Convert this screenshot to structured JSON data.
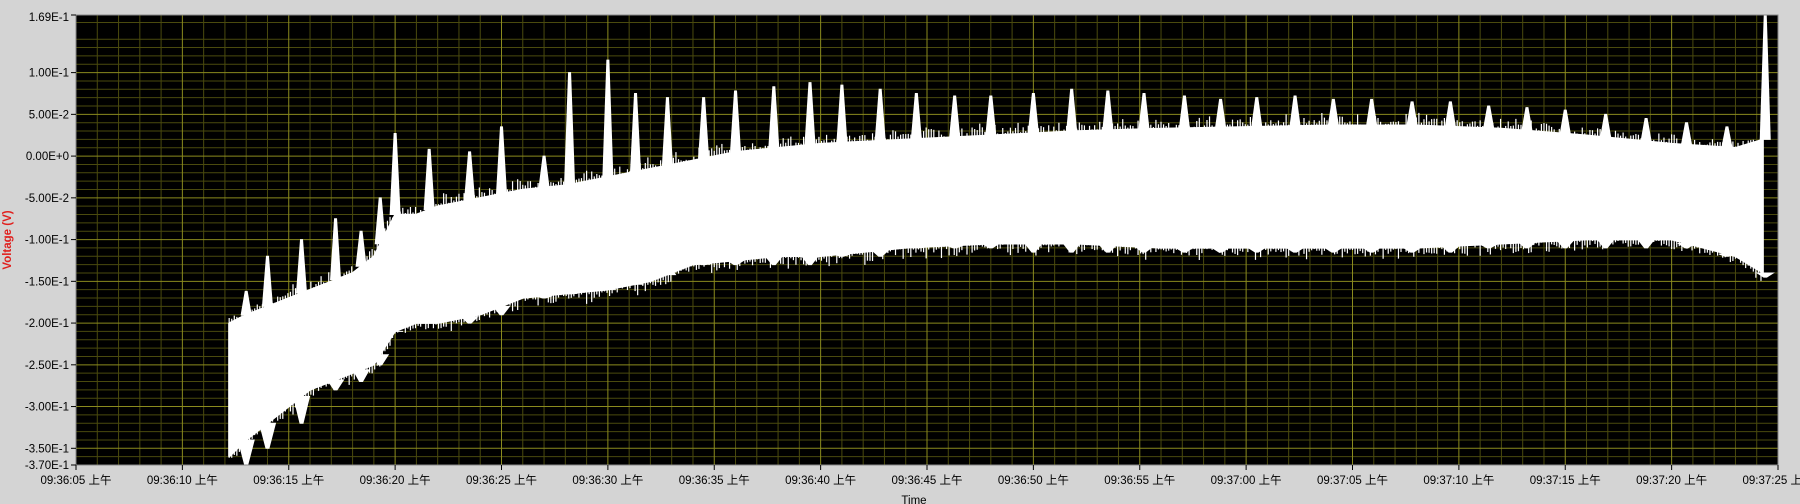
{
  "chart_data": {
    "type": "line",
    "xlabel": "Time",
    "ylabel": "Voltage (V)",
    "ylim": [
      -0.37,
      0.169
    ],
    "y_ticks": [
      0.169,
      0.1,
      0.05,
      0.0,
      -0.05,
      -0.1,
      -0.15,
      -0.2,
      -0.25,
      -0.3,
      -0.35,
      -0.37
    ],
    "y_tick_labels": [
      "1.69E-1",
      "1.00E-1",
      "5.00E-2",
      "0.00E+0",
      "-5.00E-2",
      "-1.00E-1",
      "-1.50E-1",
      "-2.00E-1",
      "-2.50E-1",
      "-3.00E-1",
      "-3.50E-1",
      "-3.70E-1"
    ],
    "x_tick_labels": [
      "09:36:05 上午",
      "09:36:10 上午",
      "09:36:15 上午",
      "09:36:20 上午",
      "09:36:25 上午",
      "09:36:30 上午",
      "09:36:35 上午",
      "09:36:40 上午",
      "09:36:45 上午",
      "09:36:50 上午",
      "09:36:55 上午",
      "09:37:00 上午",
      "09:37:05 上午",
      "09:37:10 上午",
      "09:37:15 上午",
      "09:37:20 上午",
      "09:37:25 上午"
    ],
    "x_tick_seconds": [
      5,
      10,
      15,
      20,
      25,
      30,
      35,
      40,
      45,
      50,
      55,
      60,
      65,
      70,
      75,
      80,
      85
    ],
    "xlim_seconds": [
      5,
      85
    ],
    "grid": true,
    "colors": {
      "plot_background": "#000000",
      "major_grid": "#8a8a1e",
      "minor_grid": "#4a4a0e",
      "trace": "#ffffff",
      "ylabel": "#e0201e"
    },
    "series": [
      {
        "band": [
          {
            "t": 12.2,
            "lo": -0.36,
            "hi": -0.2
          },
          {
            "t": 13.0,
            "lo": -0.34,
            "hi": -0.19
          },
          {
            "t": 14.0,
            "lo": -0.32,
            "hi": -0.18
          },
          {
            "t": 15.0,
            "lo": -0.3,
            "hi": -0.17
          },
          {
            "t": 16.0,
            "lo": -0.28,
            "hi": -0.16
          },
          {
            "t": 17.0,
            "lo": -0.27,
            "hi": -0.15
          },
          {
            "t": 18.0,
            "lo": -0.26,
            "hi": -0.14
          },
          {
            "t": 19.0,
            "lo": -0.25,
            "hi": -0.12
          },
          {
            "t": 20.0,
            "lo": -0.21,
            "hi": -0.07
          },
          {
            "t": 21.0,
            "lo": -0.2,
            "hi": -0.07
          },
          {
            "t": 22.0,
            "lo": -0.2,
            "hi": -0.06
          },
          {
            "t": 24.0,
            "lo": -0.19,
            "hi": -0.05
          },
          {
            "t": 26.0,
            "lo": -0.17,
            "hi": -0.04
          },
          {
            "t": 28.0,
            "lo": -0.165,
            "hi": -0.035
          },
          {
            "t": 30.0,
            "lo": -0.16,
            "hi": -0.025
          },
          {
            "t": 32.0,
            "lo": -0.15,
            "hi": -0.015
          },
          {
            "t": 34.0,
            "lo": -0.13,
            "hi": -0.005
          },
          {
            "t": 36.0,
            "lo": -0.125,
            "hi": 0.005
          },
          {
            "t": 38.0,
            "lo": -0.12,
            "hi": 0.01
          },
          {
            "t": 40.0,
            "lo": -0.12,
            "hi": 0.015
          },
          {
            "t": 44.0,
            "lo": -0.11,
            "hi": 0.02
          },
          {
            "t": 48.0,
            "lo": -0.105,
            "hi": 0.025
          },
          {
            "t": 52.0,
            "lo": -0.105,
            "hi": 0.03
          },
          {
            "t": 56.0,
            "lo": -0.11,
            "hi": 0.033
          },
          {
            "t": 60.0,
            "lo": -0.11,
            "hi": 0.035
          },
          {
            "t": 64.0,
            "lo": -0.11,
            "hi": 0.037
          },
          {
            "t": 68.0,
            "lo": -0.11,
            "hi": 0.037
          },
          {
            "t": 72.0,
            "lo": -0.105,
            "hi": 0.033
          },
          {
            "t": 76.0,
            "lo": -0.1,
            "hi": 0.025
          },
          {
            "t": 80.0,
            "lo": -0.1,
            "hi": 0.015
          },
          {
            "t": 83.0,
            "lo": -0.12,
            "hi": 0.01
          },
          {
            "t": 84.3,
            "lo": -0.14,
            "hi": 0.02
          }
        ],
        "peaks": [
          {
            "t": 13.0,
            "hi": -0.162,
            "lo": -0.37
          },
          {
            "t": 14.0,
            "hi": -0.12,
            "lo": -0.35
          },
          {
            "t": 15.6,
            "hi": -0.1,
            "lo": -0.32
          },
          {
            "t": 17.2,
            "hi": -0.075,
            "lo": -0.28
          },
          {
            "t": 18.4,
            "hi": -0.09,
            "lo": -0.27
          },
          {
            "t": 19.3,
            "hi": -0.05,
            "lo": -0.25
          },
          {
            "t": 20.0,
            "hi": 0.027,
            "lo": -0.21
          },
          {
            "t": 21.6,
            "hi": 0.008,
            "lo": -0.2
          },
          {
            "t": 23.5,
            "hi": 0.005,
            "lo": -0.2
          },
          {
            "t": 25.0,
            "hi": 0.035,
            "lo": -0.19
          },
          {
            "t": 27.0,
            "hi": 0.0,
            "lo": -0.17
          },
          {
            "t": 28.2,
            "hi": 0.1,
            "lo": -0.165
          },
          {
            "t": 30.0,
            "hi": 0.115,
            "lo": -0.16
          },
          {
            "t": 31.3,
            "hi": 0.075,
            "lo": -0.15
          },
          {
            "t": 32.8,
            "hi": 0.07,
            "lo": -0.13
          },
          {
            "t": 34.5,
            "hi": 0.07,
            "lo": -0.13
          },
          {
            "t": 36.0,
            "hi": 0.078,
            "lo": -0.13
          },
          {
            "t": 37.8,
            "hi": 0.083,
            "lo": -0.13
          },
          {
            "t": 39.5,
            "hi": 0.088,
            "lo": -0.13
          },
          {
            "t": 41.0,
            "hi": 0.085,
            "lo": -0.12
          },
          {
            "t": 42.8,
            "hi": 0.08,
            "lo": -0.12
          },
          {
            "t": 44.5,
            "hi": 0.075,
            "lo": -0.11
          },
          {
            "t": 46.3,
            "hi": 0.072,
            "lo": -0.11
          },
          {
            "t": 48.0,
            "hi": 0.072,
            "lo": -0.11
          },
          {
            "t": 50.0,
            "hi": 0.075,
            "lo": -0.115
          },
          {
            "t": 51.8,
            "hi": 0.08,
            "lo": -0.115
          },
          {
            "t": 53.5,
            "hi": 0.078,
            "lo": -0.115
          },
          {
            "t": 55.2,
            "hi": 0.075,
            "lo": -0.115
          },
          {
            "t": 57.1,
            "hi": 0.072,
            "lo": -0.115
          },
          {
            "t": 58.8,
            "hi": 0.068,
            "lo": -0.115
          },
          {
            "t": 60.5,
            "hi": 0.07,
            "lo": -0.115
          },
          {
            "t": 62.3,
            "hi": 0.072,
            "lo": -0.115
          },
          {
            "t": 64.1,
            "hi": 0.068,
            "lo": -0.115
          },
          {
            "t": 65.9,
            "hi": 0.068,
            "lo": -0.115
          },
          {
            "t": 67.8,
            "hi": 0.065,
            "lo": -0.115
          },
          {
            "t": 69.6,
            "hi": 0.065,
            "lo": -0.115
          },
          {
            "t": 71.4,
            "hi": 0.06,
            "lo": -0.11
          },
          {
            "t": 73.2,
            "hi": 0.058,
            "lo": -0.11
          },
          {
            "t": 75.0,
            "hi": 0.055,
            "lo": -0.11
          },
          {
            "t": 76.9,
            "hi": 0.05,
            "lo": -0.11
          },
          {
            "t": 78.8,
            "hi": 0.045,
            "lo": -0.11
          },
          {
            "t": 80.7,
            "hi": 0.04,
            "lo": -0.11
          },
          {
            "t": 82.6,
            "hi": 0.035,
            "lo": -0.12
          },
          {
            "t": 84.4,
            "hi": 0.169,
            "lo": -0.145
          }
        ]
      }
    ]
  }
}
